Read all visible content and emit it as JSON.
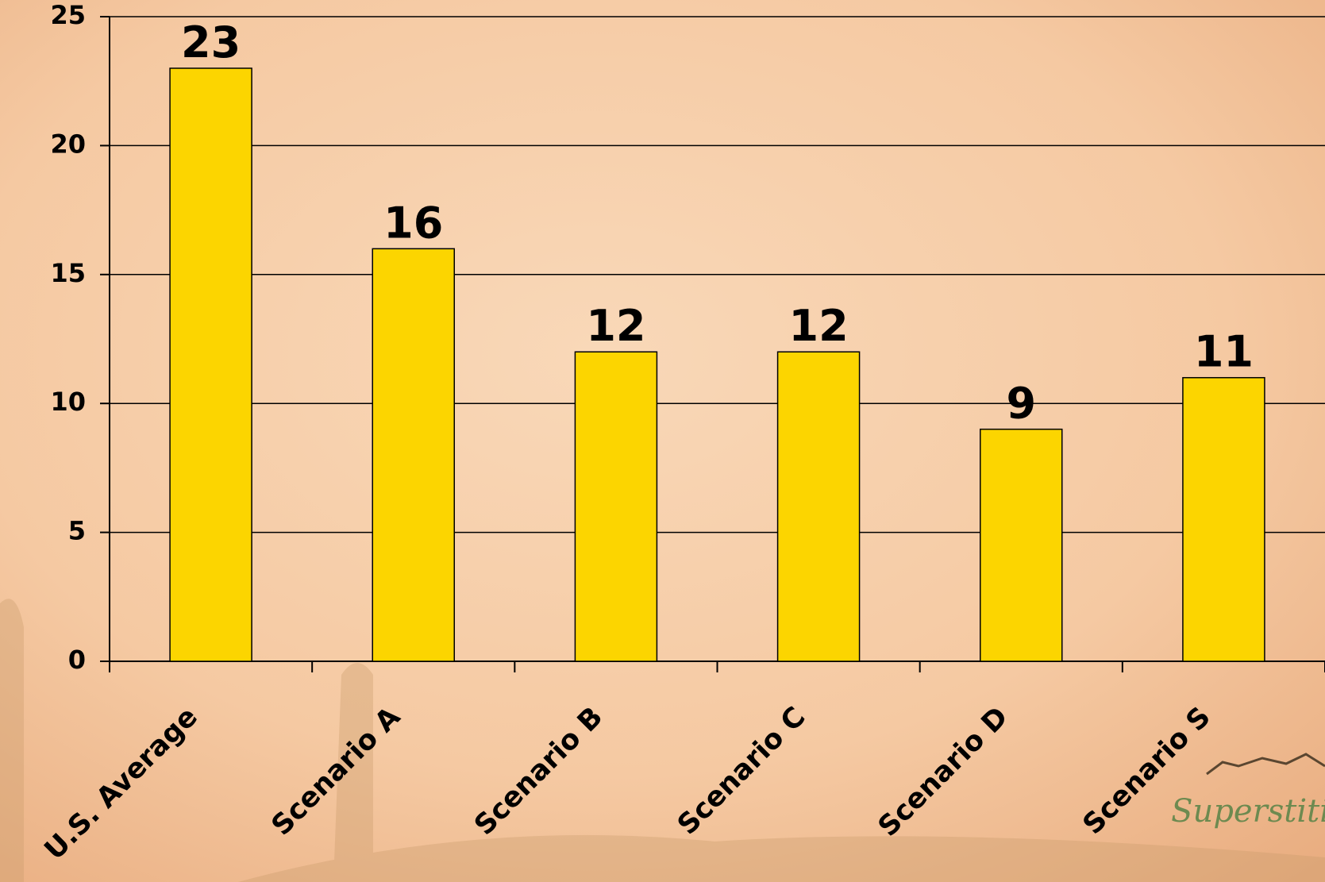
{
  "chart_data": {
    "type": "bar",
    "categories": [
      "U.S. Average",
      "Scenario A",
      "Scenario B",
      "Scenario C",
      "Scenario D",
      "Scenario S"
    ],
    "values": [
      23,
      16,
      12,
      12,
      9,
      11
    ],
    "color": "#fcd500",
    "ylim": [
      0,
      25
    ],
    "yticks": [
      0,
      5,
      10,
      15,
      20,
      25
    ],
    "grid": true,
    "logo": "Superstition"
  }
}
